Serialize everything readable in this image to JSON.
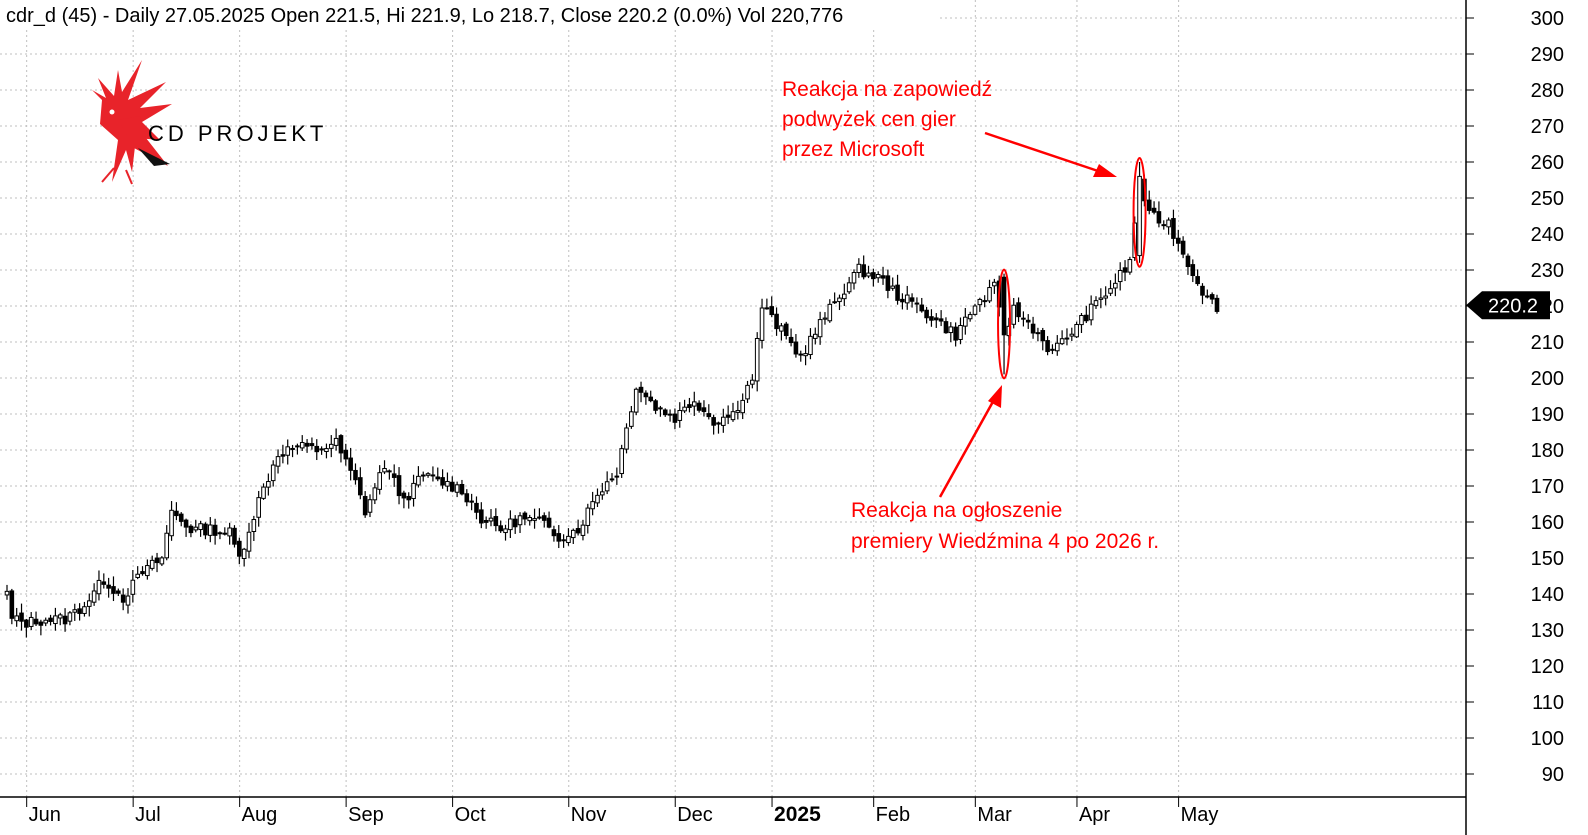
{
  "chart_data": {
    "type": "candlestick",
    "title": "cdr_d (45) - Daily 27.05.2025 Open 221.5, Hi 221.9, Lo 218.7, Close 220.2 (0.0%) Vol 220,776",
    "ticker": "cdr_d",
    "last_close_label": "220.2",
    "ylim": [
      85,
      305
    ],
    "y_ticks": [
      90,
      100,
      110,
      120,
      130,
      140,
      150,
      160,
      170,
      180,
      190,
      200,
      210,
      220,
      230,
      240,
      250,
      260,
      270,
      280,
      290,
      300
    ],
    "x_ticks": [
      {
        "label": "Jun",
        "index": 2
      },
      {
        "label": "Jul",
        "index": 24
      },
      {
        "label": "Aug",
        "index": 46
      },
      {
        "label": "Sep",
        "index": 68
      },
      {
        "label": "Oct",
        "index": 90
      },
      {
        "label": "Nov",
        "index": 114
      },
      {
        "label": "Dec",
        "index": 136
      },
      {
        "label": "2025",
        "index": 156,
        "bold": true
      },
      {
        "label": "Feb",
        "index": 177
      },
      {
        "label": "Mar",
        "index": 198
      },
      {
        "label": "Apr",
        "index": 219
      },
      {
        "label": "May",
        "index": 240
      }
    ],
    "grid": true,
    "anchors": [
      [
        0,
        140
      ],
      [
        1,
        133
      ],
      [
        4,
        132
      ],
      [
        8,
        133
      ],
      [
        12,
        133
      ],
      [
        16,
        137
      ],
      [
        20,
        144
      ],
      [
        24,
        139
      ],
      [
        28,
        146
      ],
      [
        32,
        150
      ],
      [
        34,
        163
      ],
      [
        38,
        158
      ],
      [
        42,
        158
      ],
      [
        46,
        157
      ],
      [
        48,
        150
      ],
      [
        52,
        166
      ],
      [
        56,
        179
      ],
      [
        60,
        181
      ],
      [
        64,
        180
      ],
      [
        68,
        182
      ],
      [
        72,
        171
      ],
      [
        74,
        163
      ],
      [
        78,
        176
      ],
      [
        82,
        166
      ],
      [
        86,
        173
      ],
      [
        90,
        171
      ],
      [
        94,
        169
      ],
      [
        98,
        161
      ],
      [
        102,
        158
      ],
      [
        106,
        161
      ],
      [
        110,
        160
      ],
      [
        114,
        156
      ],
      [
        118,
        158
      ],
      [
        122,
        168
      ],
      [
        126,
        174
      ],
      [
        130,
        198
      ],
      [
        134,
        192
      ],
      [
        138,
        189
      ],
      [
        142,
        194
      ],
      [
        146,
        188
      ],
      [
        150,
        190
      ],
      [
        154,
        200
      ],
      [
        156,
        220
      ],
      [
        160,
        213
      ],
      [
        164,
        206
      ],
      [
        168,
        215
      ],
      [
        172,
        223
      ],
      [
        176,
        230
      ],
      [
        180,
        228
      ],
      [
        184,
        223
      ],
      [
        188,
        220
      ],
      [
        192,
        216
      ],
      [
        196,
        212
      ],
      [
        200,
        220
      ],
      [
        204,
        225
      ],
      [
        206,
        212
      ],
      [
        208,
        219
      ],
      [
        212,
        214
      ],
      [
        216,
        207
      ],
      [
        220,
        213
      ],
      [
        224,
        219
      ],
      [
        228,
        225
      ],
      [
        232,
        232
      ],
      [
        234,
        255
      ],
      [
        236,
        245
      ],
      [
        240,
        243
      ],
      [
        244,
        232
      ],
      [
        248,
        222
      ],
      [
        250,
        220
      ]
    ],
    "marked_candles": [
      {
        "index": 206,
        "open": 228,
        "high": 229,
        "low": 201,
        "close": 212
      },
      {
        "index": 234,
        "open": 234,
        "high": 260,
        "low": 232,
        "close": 256
      }
    ],
    "annotations": [
      {
        "lines": [
          "Reakcja na zapowiedź",
          "podwyżek cen gier",
          "przez Microsoft"
        ],
        "target_index": 234
      },
      {
        "lines": [
          "Reakcja na ogłoszenie",
          "premiery Wiedźmina 4 po 2026 r."
        ],
        "target_index": 206
      }
    ]
  },
  "logo": {
    "text": "CD PROJEKT",
    "brand_color": "#e8232a",
    "icon": "red-bird-logo-icon"
  },
  "colors": {
    "annotation": "#ff0000",
    "grid": "#bfbfbf",
    "candle": "#000000"
  }
}
